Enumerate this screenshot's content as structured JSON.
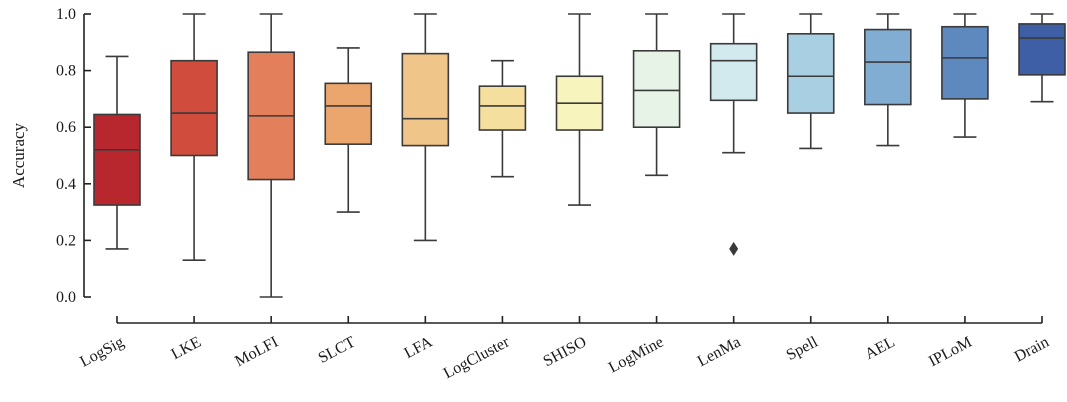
{
  "chart_data": {
    "type": "box",
    "ylabel": "Accuracy",
    "xlabel": "",
    "ylim": [
      0.0,
      1.0
    ],
    "yticks": [
      "0.0",
      "0.2",
      "0.4",
      "0.6",
      "0.8",
      "1.0"
    ],
    "grid": false,
    "legend": "none",
    "categories": [
      "LogSig",
      "LKE",
      "MoLFI",
      "SLCT",
      "LFA",
      "LogCluster",
      "SHISO",
      "LogMine",
      "LenMa",
      "Spell",
      "AEL",
      "IPLoM",
      "Drain"
    ],
    "boxes": [
      {
        "name": "LogSig",
        "min": 0.17,
        "q1": 0.325,
        "median": 0.52,
        "q3": 0.645,
        "max": 0.85,
        "outliers": [],
        "color": "#b8272d"
      },
      {
        "name": "LKE",
        "min": 0.13,
        "q1": 0.5,
        "median": 0.65,
        "q3": 0.835,
        "max": 1.0,
        "outliers": [],
        "color": "#d04d3d"
      },
      {
        "name": "MoLFI",
        "min": 0.0,
        "q1": 0.415,
        "median": 0.64,
        "q3": 0.865,
        "max": 1.0,
        "outliers": [],
        "color": "#e47f5c"
      },
      {
        "name": "SLCT",
        "min": 0.3,
        "q1": 0.54,
        "median": 0.675,
        "q3": 0.755,
        "max": 0.88,
        "outliers": [],
        "color": "#eaa66c"
      },
      {
        "name": "LFA",
        "min": 0.2,
        "q1": 0.535,
        "median": 0.63,
        "q3": 0.86,
        "max": 1.0,
        "outliers": [],
        "color": "#f0c58a"
      },
      {
        "name": "LogCluster",
        "min": 0.425,
        "q1": 0.59,
        "median": 0.675,
        "q3": 0.745,
        "max": 0.835,
        "outliers": [],
        "color": "#f5df9f"
      },
      {
        "name": "SHISO",
        "min": 0.325,
        "q1": 0.59,
        "median": 0.685,
        "q3": 0.78,
        "max": 1.0,
        "outliers": [],
        "color": "#f7f5bd"
      },
      {
        "name": "LogMine",
        "min": 0.43,
        "q1": 0.6,
        "median": 0.73,
        "q3": 0.87,
        "max": 1.0,
        "outliers": [],
        "color": "#e7f3e6"
      },
      {
        "name": "LenMa",
        "min": 0.51,
        "q1": 0.695,
        "median": 0.835,
        "q3": 0.895,
        "max": 1.0,
        "outliers": [
          0.17
        ],
        "color": "#d2e9ee"
      },
      {
        "name": "Spell",
        "min": 0.525,
        "q1": 0.65,
        "median": 0.78,
        "q3": 0.93,
        "max": 1.0,
        "outliers": [],
        "color": "#a9cfe2"
      },
      {
        "name": "AEL",
        "min": 0.535,
        "q1": 0.68,
        "median": 0.83,
        "q3": 0.945,
        "max": 1.0,
        "outliers": [],
        "color": "#81add2"
      },
      {
        "name": "IPLoM",
        "min": 0.565,
        "q1": 0.7,
        "median": 0.845,
        "q3": 0.955,
        "max": 1.0,
        "outliers": [],
        "color": "#5e89be"
      },
      {
        "name": "Drain",
        "min": 0.69,
        "q1": 0.785,
        "median": 0.915,
        "q3": 0.965,
        "max": 1.0,
        "outliers": [],
        "color": "#3e5ea5"
      }
    ]
  }
}
